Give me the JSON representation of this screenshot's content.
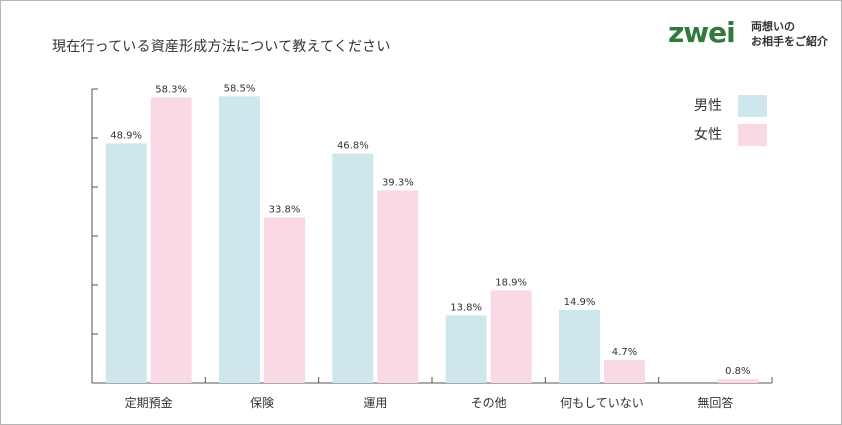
{
  "title": "現在行っている資産形成方法について教えてください",
  "logo": {
    "wordmark": "zwei",
    "tagline_line1": "両想いの",
    "tagline_line2": "お相手をご紹介"
  },
  "colors": {
    "male": "#cde7ec",
    "female": "#f8d9e5",
    "axis": "#555555"
  },
  "chart_data": {
    "type": "bar",
    "title": "現在行っている資産形成方法について教えてください",
    "categories": [
      "定期預金",
      "保険",
      "運用",
      "その他",
      "何もしていない",
      "無回答"
    ],
    "series": [
      {
        "name": "男性",
        "values": [
          48.9,
          58.5,
          46.8,
          13.8,
          14.9,
          0
        ],
        "labels": [
          "48.9%",
          "58.5%",
          "46.8%",
          "13.8%",
          "14.9%",
          ""
        ]
      },
      {
        "name": "女性",
        "values": [
          58.3,
          33.8,
          39.3,
          18.9,
          4.7,
          0.8
        ],
        "labels": [
          "58.3%",
          "33.8%",
          "39.3%",
          "18.9%",
          "4.7%",
          "0.8%"
        ]
      }
    ],
    "ylim": [
      0,
      60
    ],
    "yticks": [
      0,
      10,
      20,
      30,
      40,
      50,
      60
    ],
    "legend": "top-right",
    "grid": false
  }
}
